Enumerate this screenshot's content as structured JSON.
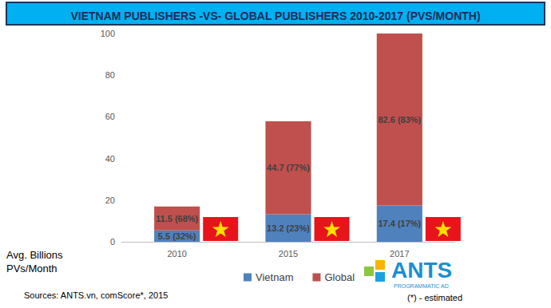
{
  "chart_data": {
    "type": "bar",
    "title": "VIETNAM PUBLISHERS -VS- GLOBAL PUBLISHERS 2010-2017 (PVS/MONTH)",
    "ylabel": "Avg. Billions\nPVs/Month",
    "categories": [
      "2010",
      "2015",
      "2017"
    ],
    "series": [
      {
        "name": "Vietnam",
        "color": "#4f81bd",
        "values": [
          5.5,
          13.2,
          17.4
        ],
        "value_labels": [
          "5.5 (32%)",
          "13.2 (23%)",
          "17.4 (17%)"
        ]
      },
      {
        "name": "Global",
        "color": "#c0504d",
        "values": [
          11.5,
          44.7,
          82.6
        ],
        "value_labels": [
          "11.5 (68%)",
          "44.7 (77%)",
          "82.6 (83%)"
        ]
      }
    ],
    "ylim": [
      0,
      100
    ],
    "yticks": [
      0,
      20,
      40,
      60,
      80,
      100
    ],
    "grid": false,
    "stacked": true,
    "data_labels": true,
    "legend": "bottom",
    "annotations": [
      "Sources: ANTS.vn, comScore*, 2015",
      "(*) - estimated",
      "ANTS",
      "PROGRAMMATIC AD"
    ]
  }
}
